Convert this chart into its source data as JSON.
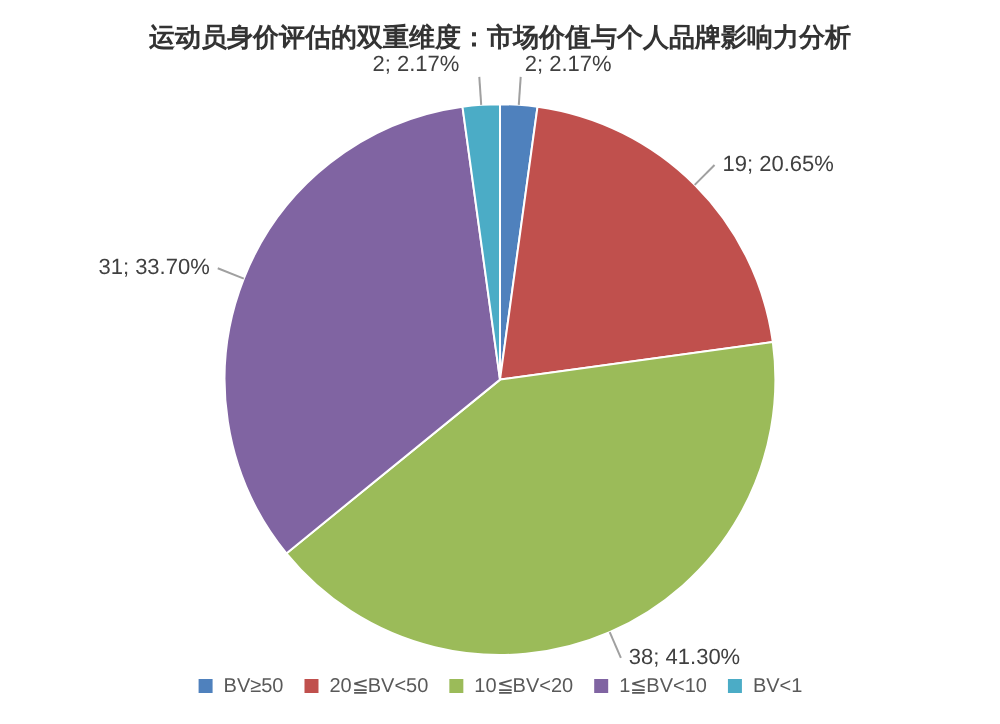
{
  "chart_data": {
    "type": "pie",
    "title": "运动员身价评估的双重维度：市场价值与个人品牌影响力分析",
    "categories": [
      "BV≥50",
      "20≦BV<50",
      "10≦BV<20",
      "1≦BV<10",
      "BV<1"
    ],
    "values": [
      2,
      19,
      38,
      31,
      2
    ],
    "value_labels": [
      "2; 2.17%",
      "19; 20.65%",
      "38; 41.30%",
      "31; 33.70%",
      "2; 2.17%"
    ],
    "colors": [
      "#4f81bd",
      "#c0504d",
      "#9bbb59",
      "#8064a2",
      "#4bacc6"
    ],
    "legend": "bottom"
  }
}
